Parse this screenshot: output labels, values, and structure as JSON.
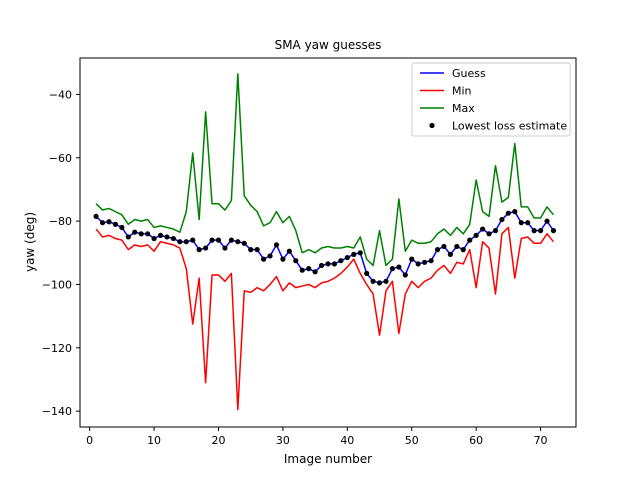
{
  "chart_data": {
    "type": "line",
    "title": "SMA yaw guesses",
    "xlabel": "Image number",
    "ylabel": "yaw (deg)",
    "xlim": [
      -1.5,
      75.5
    ],
    "ylim": [
      -145,
      -28.5
    ],
    "xticks": [
      0,
      10,
      20,
      30,
      40,
      50,
      60,
      70
    ],
    "yticks": [
      -140,
      -120,
      -100,
      -80,
      -60,
      -40
    ],
    "grid": false,
    "legend_position": "top-right",
    "x": [
      1,
      2,
      3,
      4,
      5,
      6,
      7,
      8,
      9,
      10,
      11,
      12,
      13,
      14,
      15,
      16,
      17,
      18,
      19,
      20,
      21,
      22,
      23,
      24,
      25,
      26,
      27,
      28,
      29,
      30,
      31,
      32,
      33,
      34,
      35,
      36,
      37,
      38,
      39,
      40,
      41,
      42,
      43,
      44,
      45,
      46,
      47,
      48,
      49,
      50,
      51,
      52,
      53,
      54,
      55,
      56,
      57,
      58,
      59,
      60,
      61,
      62,
      63,
      64,
      65,
      66,
      67,
      68,
      69,
      70,
      71,
      72
    ],
    "series": [
      {
        "name": "Guess",
        "kind": "line",
        "color": "#0000ff",
        "values": [
          -78.5,
          -80.5,
          -80.2,
          -81,
          -82,
          -85,
          -83.5,
          -84,
          -84,
          -85.5,
          -84.5,
          -85,
          -85.5,
          -86.5,
          -86.5,
          -86,
          -89,
          -88.5,
          -86,
          -86,
          -88.5,
          -86,
          -86.5,
          -87,
          -89,
          -89,
          -92,
          -91,
          -87.5,
          -92,
          -89.5,
          -92.5,
          -95.5,
          -95,
          -96,
          -94,
          -93.5,
          -93.5,
          -92.5,
          -91.5,
          -90.5,
          -90,
          -96.5,
          -99,
          -99.5,
          -99,
          -95,
          -94.5,
          -97,
          -92,
          -93.5,
          -93,
          -92.5,
          -89,
          -88,
          -90.5,
          -88,
          -89,
          -86,
          -84.5,
          -82.5,
          -84,
          -83,
          -79.5,
          -77.5,
          -77,
          -80.5,
          -80.5,
          -83,
          -83,
          -80,
          -83
        ]
      },
      {
        "name": "Min",
        "kind": "line",
        "color": "#ff0000",
        "values": [
          -82.5,
          -85,
          -84.5,
          -85.5,
          -86,
          -89,
          -87.5,
          -88,
          -87.5,
          -89.5,
          -86.5,
          -87,
          -87.5,
          -88.5,
          -95,
          -112.5,
          -98,
          -131,
          -97,
          -97,
          -99,
          -96.5,
          -139.5,
          -102,
          -102.5,
          -101,
          -102,
          -100,
          -97.5,
          -102,
          -99.5,
          -101,
          -100.5,
          -100,
          -101,
          -99.5,
          -99,
          -98,
          -96.5,
          -94.5,
          -92,
          -96.5,
          -100,
          -103,
          -116,
          -102,
          -99,
          -115.5,
          -103,
          -99,
          -101,
          -99,
          -98,
          -95.5,
          -94,
          -96.5,
          -93,
          -93.5,
          -89,
          -101,
          -86.5,
          -88.5,
          -103,
          -84,
          -82,
          -98,
          -85.5,
          -85,
          -87,
          -87,
          -84,
          -86.5
        ]
      },
      {
        "name": "Max",
        "kind": "line",
        "color": "#008000",
        "values": [
          -74.5,
          -76.5,
          -76,
          -77,
          -78,
          -81,
          -79.5,
          -80,
          -79.5,
          -82,
          -81.5,
          -82,
          -82.5,
          -83.5,
          -77,
          -58.5,
          -79.5,
          -45.5,
          -74.5,
          -74.5,
          -76.5,
          -73.5,
          -33.5,
          -72,
          -75,
          -77,
          -81.5,
          -80.5,
          -77,
          -80.5,
          -78.5,
          -83,
          -90,
          -89,
          -90,
          -88.5,
          -88,
          -88.5,
          -88.5,
          -88,
          -88.5,
          -85,
          -92,
          -94,
          -83,
          -94,
          -92,
          -73,
          -89.5,
          -86,
          -87,
          -87,
          -86.5,
          -84,
          -82.5,
          -84.5,
          -82,
          -84,
          -81,
          -67,
          -77,
          -78.5,
          -62.5,
          -74,
          -72.5,
          -55.5,
          -75.5,
          -75.5,
          -79,
          -79,
          -75.5,
          -78
        ]
      },
      {
        "name": "Lowest loss estimate",
        "kind": "scatter",
        "color": "#000000",
        "values": [
          -78.5,
          -80.5,
          -80.2,
          -81,
          -82,
          -85,
          -83.5,
          -84,
          -84,
          -85.5,
          -84.5,
          -85,
          -85.5,
          -86.5,
          -86.5,
          -86,
          -89,
          -88.5,
          -86,
          -86,
          -88.5,
          -86,
          -86.5,
          -87,
          -89,
          -89,
          -92,
          -91,
          -87.5,
          -92,
          -89.5,
          -92.5,
          -95.5,
          -95,
          -96,
          -94,
          -93.5,
          -93.5,
          -92.5,
          -91.5,
          -90.5,
          -90,
          -96.5,
          -99,
          -99.5,
          -99,
          -95,
          -94.5,
          -97,
          -92,
          -93.5,
          -93,
          -92.5,
          -89,
          -88,
          -90.5,
          -88,
          -89,
          -86,
          -84.5,
          -82.5,
          -84,
          -83,
          -79.5,
          -77.5,
          -77,
          -80.5,
          -80.5,
          -83,
          -83,
          -80,
          -83
        ]
      }
    ]
  }
}
